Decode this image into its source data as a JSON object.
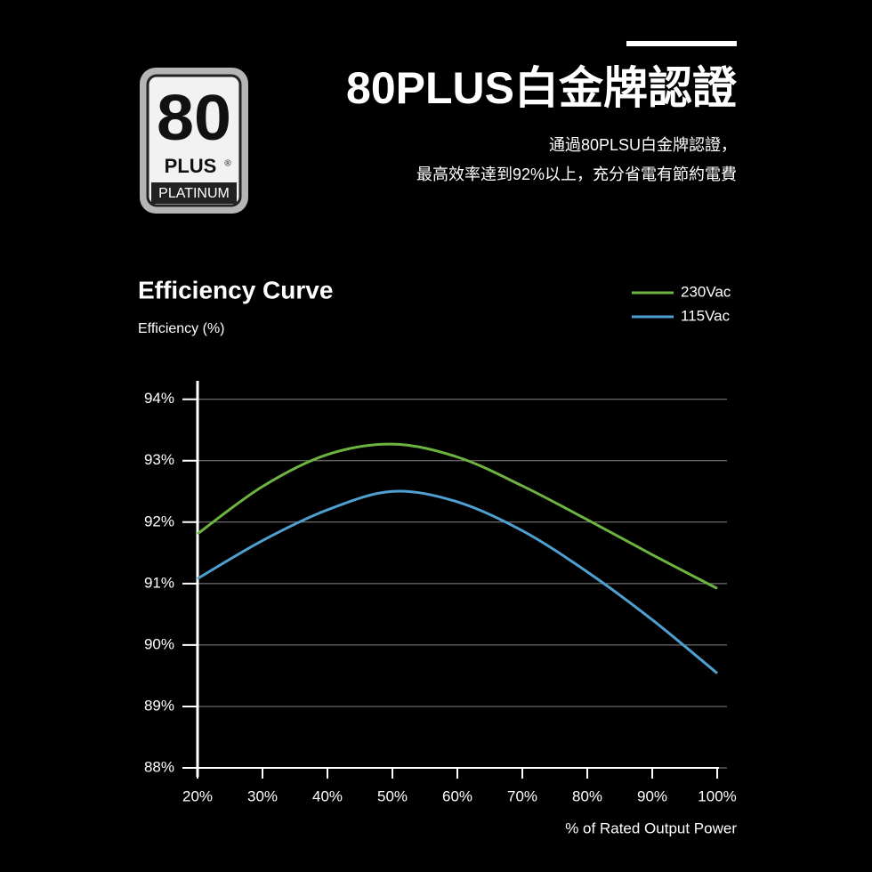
{
  "header": {
    "title": "80PLUS白金牌認證",
    "lines": [
      "通過80PLSU白金牌認證，",
      "最高效率達到92%以上，充分省電有節約電費"
    ]
  },
  "badge": {
    "number": "80",
    "brand": "PLUS",
    "mark": "®",
    "level": "PLATINUM"
  },
  "chart_data": {
    "type": "line",
    "title": "Efficiency Curve",
    "y_label": "Efficiency (%)",
    "x_label": "% of Rated Output Power",
    "x": [
      20,
      30,
      40,
      50,
      60,
      70,
      80,
      90,
      100
    ],
    "series": [
      {
        "name": "230Vac",
        "color": "#6db33f",
        "values": [
          91.81,
          92.58,
          93.1,
          93.27,
          93.06,
          92.59,
          92.04,
          91.47,
          90.92
        ]
      },
      {
        "name": "115Vac",
        "color": "#4f9fd0",
        "values": [
          91.08,
          91.7,
          92.2,
          92.5,
          92.33,
          91.86,
          91.19,
          90.41,
          89.54
        ]
      }
    ],
    "xlim": [
      20,
      101.5
    ],
    "ylim": [
      88,
      94.3
    ],
    "xticks": [
      {
        "value": 20,
        "label": "20%"
      },
      {
        "value": 30,
        "label": "30%"
      },
      {
        "value": 40,
        "label": "40%"
      },
      {
        "value": 50,
        "label": "50%"
      },
      {
        "value": 60,
        "label": "60%"
      },
      {
        "value": 70,
        "label": "70%"
      },
      {
        "value": 80,
        "label": "80%"
      },
      {
        "value": 90,
        "label": "90%"
      },
      {
        "value": 100,
        "label": "100%"
      }
    ],
    "yticks": [
      {
        "value": 88,
        "label": "88%"
      },
      {
        "value": 89,
        "label": "89%"
      },
      {
        "value": 90,
        "label": "90%"
      },
      {
        "value": 91,
        "label": "91%"
      },
      {
        "value": 92,
        "label": "92%"
      },
      {
        "value": 93,
        "label": "93%"
      },
      {
        "value": 94,
        "label": "94%"
      }
    ],
    "grid": true,
    "legend": "top-right"
  }
}
